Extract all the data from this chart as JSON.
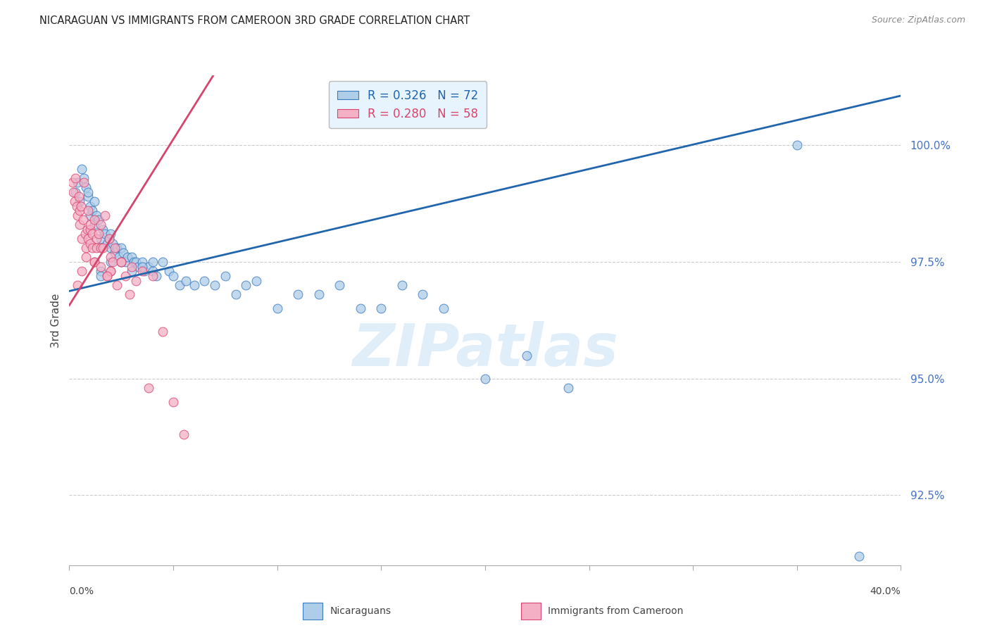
{
  "title": "NICARAGUAN VS IMMIGRANTS FROM CAMEROON 3RD GRADE CORRELATION CHART",
  "source": "Source: ZipAtlas.com",
  "ylabel": "3rd Grade",
  "xlim": [
    0.0,
    40.0
  ],
  "ylim": [
    91.0,
    101.5
  ],
  "yticks": [
    92.5,
    95.0,
    97.5,
    100.0
  ],
  "ytick_labels": [
    "92.5%",
    "95.0%",
    "97.5%",
    "100.0%"
  ],
  "blue_face_color": "#aecde8",
  "pink_face_color": "#f4b0c5",
  "blue_edge_color": "#3a7abf",
  "pink_edge_color": "#d94570",
  "blue_line_color": "#2166ac",
  "pink_line_color": "#d6456b",
  "legend_bg_color": "#e8f4fd",
  "legend_border_color": "#bbbbbb",
  "R_blue": 0.326,
  "N_blue": 72,
  "R_pink": 0.28,
  "N_pink": 58,
  "watermark_text": "ZIPatlas",
  "blue_x": [
    0.3,
    0.4,
    0.5,
    0.6,
    0.7,
    0.8,
    0.9,
    0.9,
    1.0,
    1.0,
    1.1,
    1.2,
    1.2,
    1.3,
    1.4,
    1.5,
    1.6,
    1.7,
    1.8,
    1.9,
    2.0,
    2.0,
    2.1,
    2.2,
    2.3,
    2.4,
    2.5,
    2.6,
    2.7,
    2.8,
    3.0,
    3.1,
    3.2,
    3.3,
    3.5,
    3.6,
    3.8,
    4.0,
    4.2,
    4.5,
    4.8,
    5.0,
    5.3,
    5.6,
    6.0,
    6.5,
    7.0,
    7.5,
    8.0,
    8.5,
    9.0,
    10.0,
    11.0,
    12.0,
    13.0,
    14.0,
    15.0,
    16.0,
    17.0,
    18.0,
    20.0,
    22.0,
    24.0,
    1.5,
    1.5,
    2.0,
    2.5,
    3.0,
    3.5,
    4.0,
    35.0,
    38.0
  ],
  "blue_y": [
    99.0,
    99.2,
    98.8,
    99.5,
    99.3,
    99.1,
    98.9,
    99.0,
    98.5,
    98.7,
    98.6,
    98.3,
    98.8,
    98.5,
    98.4,
    98.0,
    98.2,
    98.1,
    97.9,
    98.0,
    98.1,
    97.8,
    97.9,
    97.7,
    97.8,
    97.6,
    97.8,
    97.7,
    97.5,
    97.6,
    97.6,
    97.5,
    97.5,
    97.4,
    97.5,
    97.3,
    97.4,
    97.3,
    97.2,
    97.5,
    97.3,
    97.2,
    97.0,
    97.1,
    97.0,
    97.1,
    97.0,
    97.2,
    96.8,
    97.0,
    97.1,
    96.5,
    96.8,
    96.8,
    97.0,
    96.5,
    96.5,
    97.0,
    96.8,
    96.5,
    95.0,
    95.5,
    94.8,
    97.3,
    97.2,
    97.5,
    97.5,
    97.3,
    97.4,
    97.5,
    100.0,
    91.2
  ],
  "pink_x": [
    0.15,
    0.2,
    0.25,
    0.3,
    0.35,
    0.4,
    0.45,
    0.5,
    0.5,
    0.55,
    0.6,
    0.65,
    0.7,
    0.75,
    0.8,
    0.85,
    0.9,
    0.9,
    1.0,
    1.0,
    1.0,
    1.1,
    1.1,
    1.2,
    1.2,
    1.3,
    1.3,
    1.4,
    1.5,
    1.5,
    1.6,
    1.7,
    1.8,
    1.9,
    2.0,
    2.0,
    2.1,
    2.2,
    2.3,
    2.5,
    2.7,
    2.9,
    3.0,
    3.2,
    3.5,
    3.8,
    4.0,
    4.5,
    5.0,
    5.5,
    0.8,
    1.2,
    1.5,
    2.0,
    2.5,
    1.8,
    0.6,
    0.4
  ],
  "pink_y": [
    99.2,
    99.0,
    98.8,
    99.3,
    98.7,
    98.5,
    98.9,
    98.3,
    98.6,
    98.7,
    98.0,
    98.4,
    99.2,
    98.1,
    97.8,
    98.2,
    98.6,
    98.0,
    98.2,
    97.9,
    98.3,
    97.8,
    98.1,
    98.4,
    97.5,
    97.8,
    98.0,
    98.1,
    97.8,
    98.3,
    97.8,
    98.5,
    97.2,
    98.0,
    97.6,
    97.3,
    97.5,
    97.8,
    97.0,
    97.5,
    97.2,
    96.8,
    97.4,
    97.1,
    97.3,
    94.8,
    97.2,
    96.0,
    94.5,
    93.8,
    97.6,
    97.5,
    97.4,
    97.3,
    97.5,
    97.2,
    97.3,
    97.0
  ]
}
